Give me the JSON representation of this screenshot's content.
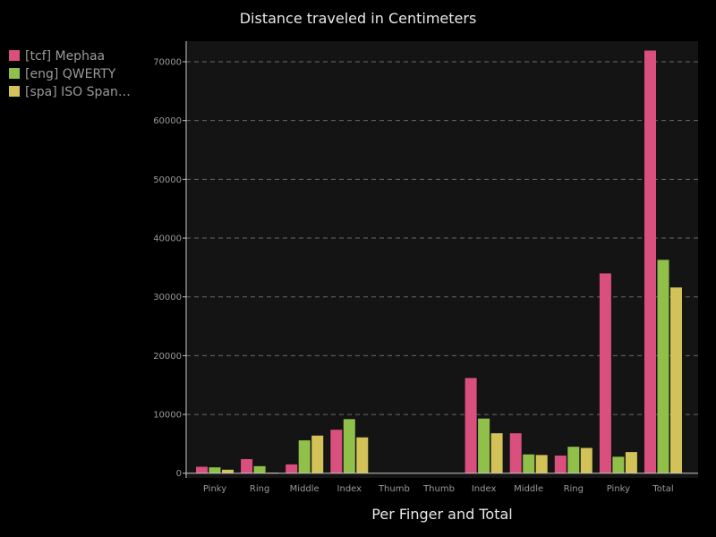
{
  "chart_data": {
    "type": "bar",
    "title": "Distance traveled in Centimeters",
    "xlabel": "Per Finger and Total",
    "ylabel": "",
    "ylim": [
      -800,
      73500
    ],
    "yticks": [
      0,
      10000,
      20000,
      30000,
      40000,
      50000,
      60000,
      70000
    ],
    "ytick_labels": [
      "0",
      "10000",
      "20000",
      "30000",
      "40000",
      "50000",
      "60000",
      "70000"
    ],
    "highlight_tick": "50000",
    "grid": true,
    "legend_position": "top-left",
    "categories": [
      "Pinky",
      "Ring",
      "Middle",
      "Index",
      "Thumb",
      "Thumb",
      "Index",
      "Middle",
      "Ring",
      "Pinky",
      "Total"
    ],
    "series": [
      {
        "name": "[tcf] Mephaa",
        "color": "#d94f7d",
        "values": [
          1100,
          2400,
          1500,
          7400,
          0,
          0,
          16200,
          6800,
          3000,
          34000,
          71900
        ]
      },
      {
        "name": "[eng] QWERTY",
        "color": "#90c04a",
        "values": [
          1000,
          1200,
          5600,
          9200,
          0,
          0,
          9300,
          3200,
          4500,
          2800,
          36300
        ]
      },
      {
        "name": "[spa] ISO Span…",
        "color": "#d2c258",
        "values": [
          600,
          100,
          6400,
          6100,
          0,
          0,
          6800,
          3100,
          4300,
          3600,
          31600
        ]
      }
    ]
  },
  "colors": {
    "background": "#000000",
    "plot_background": "#141414",
    "grid": "#6a6a6a",
    "axis": "#c8c8c8"
  }
}
